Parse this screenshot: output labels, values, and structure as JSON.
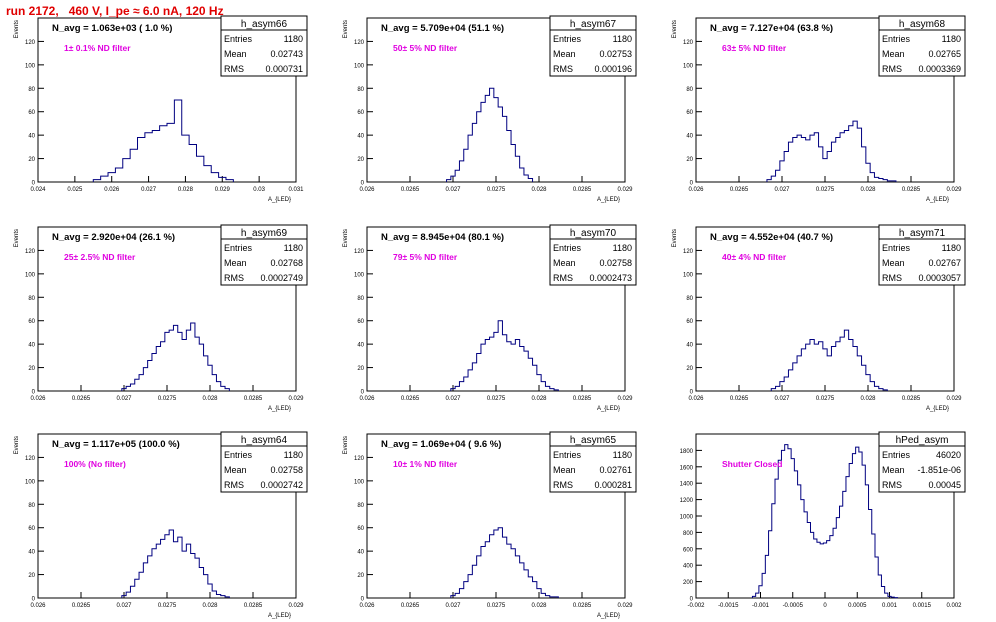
{
  "run_title": "run 2172,   460 V, I_pe ≈ 6.0 nA, 120 Hz",
  "colors": {
    "hist": "#000080",
    "ndlabel": "#e000e0",
    "title": "#e00000"
  },
  "chart_data": [
    {
      "type": "histogram",
      "name": "h_asym66",
      "ylabel": "Events",
      "xlabel": "A_{LED}",
      "navg": "N_avg = 1.063e+03 ( 1.0 %)",
      "filter": "1± 0.1% ND filter",
      "stats": {
        "entries": "1180",
        "mean": "0.02743",
        "rms": "0.000731"
      },
      "xlim": [
        0.024,
        0.031
      ],
      "ylim": [
        0,
        140
      ],
      "xticks": [
        0.024,
        0.025,
        0.026,
        0.027,
        0.028,
        0.029,
        0.03,
        0.031
      ],
      "xticklabels": [
        "0.024",
        "0.025",
        "0.026",
        "0.027",
        "0.028",
        "0.029",
        "0.03",
        "0.031"
      ],
      "yticks": [
        0,
        20,
        40,
        60,
        80,
        100,
        120
      ],
      "x": [
        0.0256,
        0.0258,
        0.026,
        0.0262,
        0.0264,
        0.0266,
        0.0268,
        0.027,
        0.0272,
        0.0274,
        0.0276,
        0.0278,
        0.028,
        0.0282,
        0.0284,
        0.0286,
        0.0288,
        0.029,
        0.0292
      ],
      "values": [
        2,
        5,
        8,
        12,
        20,
        28,
        38,
        42,
        44,
        48,
        50,
        70,
        40,
        32,
        22,
        14,
        8,
        4,
        2
      ]
    },
    {
      "type": "histogram",
      "name": "h_asym67",
      "ylabel": "Events",
      "xlabel": "A_{LED}",
      "navg": "N_avg = 5.709e+04 (51.1 %)",
      "filter": "50± 5% ND filter",
      "stats": {
        "entries": "1180",
        "mean": "0.02753",
        "rms": "0.000196"
      },
      "xlim": [
        0.026,
        0.029
      ],
      "ylim": [
        0,
        140
      ],
      "xticks": [
        0.026,
        0.0265,
        0.027,
        0.0275,
        0.028,
        0.0285,
        0.029
      ],
      "xticklabels": [
        "0.026",
        "0.0265",
        "0.027",
        "0.0275",
        "0.028",
        "0.0285",
        "0.029"
      ],
      "yticks": [
        0,
        20,
        40,
        60,
        80,
        100,
        120
      ],
      "x": [
        0.02695,
        0.027,
        0.02705,
        0.0271,
        0.02715,
        0.0272,
        0.02725,
        0.0273,
        0.02735,
        0.0274,
        0.02745,
        0.0275,
        0.02755,
        0.0276,
        0.02765,
        0.0277,
        0.02775,
        0.0278,
        0.02785,
        0.0279
      ],
      "values": [
        2,
        5,
        10,
        18,
        28,
        40,
        50,
        60,
        68,
        74,
        80,
        72,
        64,
        56,
        44,
        32,
        22,
        12,
        6,
        3
      ]
    },
    {
      "type": "histogram",
      "name": "h_asym68",
      "ylabel": "Events",
      "xlabel": "A_{LED}",
      "navg": "N_avg = 7.127e+04 (63.8 %)",
      "filter": "63± 5% ND filter",
      "stats": {
        "entries": "1180",
        "mean": "0.02765",
        "rms": "0.0003369"
      },
      "xlim": [
        0.026,
        0.029
      ],
      "ylim": [
        0,
        140
      ],
      "xticks": [
        0.026,
        0.0265,
        0.027,
        0.0275,
        0.028,
        0.0285,
        0.029
      ],
      "xticklabels": [
        "0.026",
        "0.0265",
        "0.027",
        "0.0275",
        "0.028",
        "0.0285",
        "0.029"
      ],
      "yticks": [
        0,
        20,
        40,
        60,
        80,
        100,
        120
      ],
      "x": [
        0.02685,
        0.0269,
        0.02695,
        0.027,
        0.02705,
        0.0271,
        0.02715,
        0.0272,
        0.02725,
        0.0273,
        0.02735,
        0.0274,
        0.02745,
        0.0275,
        0.02755,
        0.0276,
        0.02765,
        0.0277,
        0.02775,
        0.0278,
        0.02785,
        0.0279,
        0.02795,
        0.028,
        0.02805,
        0.0281,
        0.02815,
        0.0282,
        0.02825,
        0.0283
      ],
      "values": [
        2,
        5,
        10,
        18,
        26,
        34,
        38,
        40,
        38,
        36,
        40,
        42,
        30,
        20,
        26,
        34,
        38,
        42,
        44,
        48,
        52,
        46,
        30,
        16,
        8,
        4,
        3,
        2,
        1,
        1
      ]
    },
    {
      "type": "histogram",
      "name": "h_asym69",
      "ylabel": "Events",
      "xlabel": "A_{LED}",
      "navg": "N_avg = 2.920e+04 (26.1 %)",
      "filter": "25± 2.5% ND filter",
      "stats": {
        "entries": "1180",
        "mean": "0.02768",
        "rms": "0.0002749"
      },
      "xlim": [
        0.026,
        0.029
      ],
      "ylim": [
        0,
        140
      ],
      "xticks": [
        0.026,
        0.0265,
        0.027,
        0.0275,
        0.028,
        0.0285,
        0.029
      ],
      "xticklabels": [
        "0.026",
        "0.0265",
        "0.027",
        "0.0275",
        "0.028",
        "0.0285",
        "0.029"
      ],
      "yticks": [
        0,
        20,
        40,
        60,
        80,
        100,
        120
      ],
      "x": [
        0.027,
        0.02705,
        0.0271,
        0.02715,
        0.0272,
        0.02725,
        0.0273,
        0.02735,
        0.0274,
        0.02745,
        0.0275,
        0.02755,
        0.0276,
        0.02765,
        0.0277,
        0.02775,
        0.0278,
        0.02785,
        0.0279,
        0.02795,
        0.028,
        0.02805,
        0.0281,
        0.02815,
        0.0282
      ],
      "values": [
        2,
        4,
        6,
        10,
        14,
        20,
        26,
        32,
        38,
        42,
        50,
        52,
        56,
        50,
        44,
        52,
        58,
        46,
        40,
        30,
        22,
        14,
        8,
        4,
        2
      ]
    },
    {
      "type": "histogram",
      "name": "h_asym70",
      "ylabel": "Events",
      "xlabel": "A_{LED}",
      "navg": "N_avg = 8.945e+04 (80.1 %)",
      "filter": "79± 5% ND filter",
      "stats": {
        "entries": "1180",
        "mean": "0.02758",
        "rms": "0.0002473"
      },
      "xlim": [
        0.026,
        0.029
      ],
      "ylim": [
        0,
        140
      ],
      "xticks": [
        0.026,
        0.0265,
        0.027,
        0.0275,
        0.028,
        0.0285,
        0.029
      ],
      "xticklabels": [
        "0.026",
        "0.0265",
        "0.027",
        "0.0275",
        "0.028",
        "0.0285",
        "0.029"
      ],
      "yticks": [
        0,
        20,
        40,
        60,
        80,
        100,
        120
      ],
      "x": [
        0.027,
        0.02705,
        0.0271,
        0.02715,
        0.0272,
        0.02725,
        0.0273,
        0.02735,
        0.0274,
        0.02745,
        0.0275,
        0.02755,
        0.0276,
        0.02765,
        0.0277,
        0.02775,
        0.0278,
        0.02785,
        0.0279,
        0.02795,
        0.028,
        0.02805,
        0.0281,
        0.02815,
        0.0282
      ],
      "values": [
        2,
        4,
        8,
        12,
        18,
        24,
        32,
        40,
        44,
        46,
        50,
        60,
        48,
        42,
        40,
        44,
        38,
        34,
        28,
        22,
        14,
        8,
        4,
        2,
        1
      ]
    },
    {
      "type": "histogram",
      "name": "h_asym71",
      "ylabel": "Events",
      "xlabel": "A_{LED}",
      "navg": "N_avg = 4.552e+04 (40.7 %)",
      "filter": "40± 4% ND filter",
      "stats": {
        "entries": "1180",
        "mean": "0.02767",
        "rms": "0.0003057"
      },
      "xlim": [
        0.026,
        0.029
      ],
      "ylim": [
        0,
        140
      ],
      "xticks": [
        0.026,
        0.0265,
        0.027,
        0.0275,
        0.028,
        0.0285,
        0.029
      ],
      "xticklabels": [
        "0.026",
        "0.0265",
        "0.027",
        "0.0275",
        "0.028",
        "0.0285",
        "0.029"
      ],
      "yticks": [
        0,
        20,
        40,
        60,
        80,
        100,
        120
      ],
      "x": [
        0.0269,
        0.02695,
        0.027,
        0.02705,
        0.0271,
        0.02715,
        0.0272,
        0.02725,
        0.0273,
        0.02735,
        0.0274,
        0.02745,
        0.0275,
        0.02755,
        0.0276,
        0.02765,
        0.0277,
        0.02775,
        0.0278,
        0.02785,
        0.0279,
        0.02795,
        0.028,
        0.02805,
        0.0281,
        0.02815,
        0.0282
      ],
      "values": [
        2,
        4,
        8,
        12,
        18,
        24,
        30,
        36,
        40,
        44,
        40,
        42,
        36,
        30,
        38,
        42,
        46,
        52,
        44,
        38,
        30,
        22,
        14,
        8,
        4,
        2,
        1
      ]
    },
    {
      "type": "histogram",
      "name": "h_asym64",
      "ylabel": "Events",
      "xlabel": "A_{LED}",
      "navg": "N_avg = 1.117e+05 (100.0 %)",
      "filter": "100% (No filter)",
      "stats": {
        "entries": "1180",
        "mean": "0.02758",
        "rms": "0.0002742"
      },
      "xlim": [
        0.026,
        0.029
      ],
      "ylim": [
        0,
        140
      ],
      "xticks": [
        0.026,
        0.0265,
        0.027,
        0.0275,
        0.028,
        0.0285,
        0.029
      ],
      "xticklabels": [
        "0.026",
        "0.0265",
        "0.027",
        "0.0275",
        "0.028",
        "0.0285",
        "0.029"
      ],
      "yticks": [
        0,
        20,
        40,
        60,
        80,
        100,
        120
      ],
      "x": [
        0.027,
        0.02705,
        0.0271,
        0.02715,
        0.0272,
        0.02725,
        0.0273,
        0.02735,
        0.0274,
        0.02745,
        0.0275,
        0.02755,
        0.0276,
        0.02765,
        0.0277,
        0.02775,
        0.0278,
        0.02785,
        0.0279,
        0.02795,
        0.028,
        0.02805,
        0.0281,
        0.02815,
        0.0282
      ],
      "values": [
        2,
        5,
        10,
        16,
        22,
        30,
        36,
        42,
        46,
        50,
        54,
        58,
        48,
        52,
        40,
        46,
        38,
        34,
        26,
        20,
        12,
        6,
        3,
        2,
        1
      ]
    },
    {
      "type": "histogram",
      "name": "h_asym65",
      "ylabel": "Events",
      "xlabel": "A_{LED}",
      "navg": "N_avg = 1.069e+04 ( 9.6 %)",
      "filter": "10± 1% ND filter",
      "stats": {
        "entries": "1180",
        "mean": "0.02761",
        "rms": "0.000281"
      },
      "xlim": [
        0.026,
        0.029
      ],
      "ylim": [
        0,
        140
      ],
      "xticks": [
        0.026,
        0.0265,
        0.027,
        0.0275,
        0.028,
        0.0285,
        0.029
      ],
      "xticklabels": [
        "0.026",
        "0.0265",
        "0.027",
        "0.0275",
        "0.028",
        "0.0285",
        "0.029"
      ],
      "yticks": [
        0,
        20,
        40,
        60,
        80,
        100,
        120
      ],
      "x": [
        0.027,
        0.02705,
        0.0271,
        0.02715,
        0.0272,
        0.02725,
        0.0273,
        0.02735,
        0.0274,
        0.02745,
        0.0275,
        0.02755,
        0.0276,
        0.02765,
        0.0277,
        0.02775,
        0.0278,
        0.02785,
        0.0279,
        0.02795,
        0.028,
        0.02805,
        0.0281,
        0.02815,
        0.0282
      ],
      "values": [
        2,
        4,
        8,
        14,
        20,
        28,
        36,
        44,
        48,
        54,
        58,
        60,
        52,
        46,
        42,
        36,
        30,
        24,
        18,
        14,
        8,
        4,
        2,
        1,
        1
      ]
    },
    {
      "type": "histogram",
      "name": "hPed_asym",
      "ylabel": "",
      "xlabel": "",
      "navg": "",
      "filter": "Shutter Closed",
      "stats": {
        "entries": "46020",
        "mean": "-1.851e-06",
        "rms": "0.00045"
      },
      "xlim": [
        -0.002,
        0.002
      ],
      "ylim": [
        0,
        2000
      ],
      "xticks": [
        -0.002,
        -0.0015,
        -0.001,
        -0.0005,
        0,
        0.0005,
        0.001,
        0.0015,
        0.002
      ],
      "xticklabels": [
        "-0.002",
        "-0.0015",
        "-0.001",
        "-0.0005",
        "0",
        "0.0005",
        "0.001",
        "0.0015",
        "0.002"
      ],
      "yticks": [
        0,
        200,
        400,
        600,
        800,
        1000,
        1200,
        1400,
        1600,
        1800
      ],
      "x": [
        -0.0011,
        -0.00105,
        -0.001,
        -0.00095,
        -0.0009,
        -0.00085,
        -0.0008,
        -0.00075,
        -0.0007,
        -0.00065,
        -0.0006,
        -0.00055,
        -0.0005,
        -0.00045,
        -0.0004,
        -0.00035,
        -0.0003,
        -0.00025,
        -0.0002,
        -0.00015,
        -0.0001,
        -5e-05,
        0,
        5e-05,
        0.0001,
        0.00015,
        0.0002,
        0.00025,
        0.0003,
        0.00035,
        0.0004,
        0.00045,
        0.0005,
        0.00055,
        0.0006,
        0.00065,
        0.0007,
        0.00075,
        0.0008,
        0.00085,
        0.0009,
        0.00095,
        0.001,
        0.00105,
        0.0011
      ],
      "values": [
        20,
        60,
        150,
        300,
        520,
        820,
        1150,
        1450,
        1680,
        1800,
        1870,
        1820,
        1700,
        1550,
        1380,
        1200,
        1050,
        920,
        800,
        720,
        680,
        660,
        670,
        700,
        760,
        850,
        980,
        1120,
        1300,
        1480,
        1640,
        1760,
        1840,
        1780,
        1620,
        1380,
        1080,
        780,
        500,
        280,
        140,
        60,
        20,
        10,
        5
      ]
    }
  ]
}
